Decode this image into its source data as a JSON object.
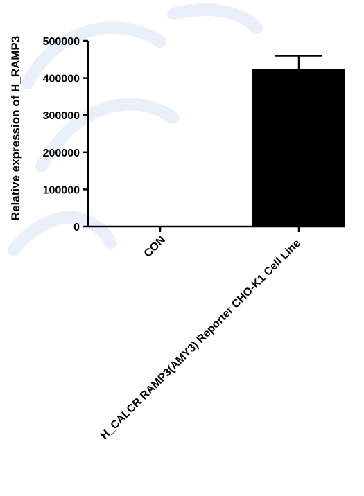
{
  "chart_data": {
    "type": "bar",
    "categories": [
      "CON",
      "H_CALCR RAMP3(AMY3) Reporter CHO-K1 Cell Line"
    ],
    "values": [
      0,
      425000
    ],
    "error": [
      0,
      35000
    ],
    "ylabel": "Relative expression of H_RAMP3",
    "xlabel": "",
    "title": "",
    "ylim": [
      0,
      500000
    ],
    "yticks": [
      0,
      100000,
      200000,
      300000,
      400000,
      500000
    ],
    "ytick_labels": [
      "0",
      "100000",
      "200000",
      "300000",
      "400000",
      "500000"
    ],
    "grid": false,
    "legend": "none",
    "colors": {
      "bar": "#000000",
      "axis": "#000000",
      "watermark": "#d8e3f6"
    }
  }
}
